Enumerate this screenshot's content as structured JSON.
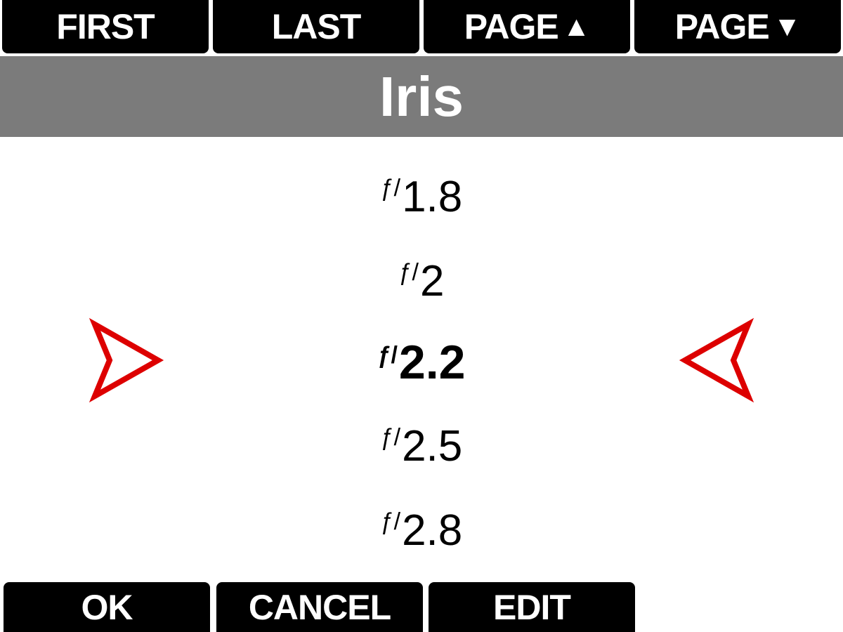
{
  "top_buttons": {
    "first": "FIRST",
    "last": "LAST",
    "page_up": "PAGE",
    "page_down": "PAGE",
    "up_glyph": "▲",
    "down_glyph": "▼"
  },
  "header": {
    "title": "Iris"
  },
  "list": {
    "prefix": "ƒ/",
    "items": [
      "1.8",
      "2",
      "2.2",
      "2.5",
      "2.8"
    ],
    "selected": "2.2"
  },
  "bottom_buttons": {
    "ok": "OK",
    "cancel": "CANCEL",
    "edit": "EDIT"
  },
  "colors": {
    "selector": "#dd0000",
    "header_bg": "#7b7b7b",
    "button_bg": "#000000"
  },
  "icons": {
    "left": "selector-arrow-right-icon",
    "right": "selector-arrow-left-icon"
  }
}
